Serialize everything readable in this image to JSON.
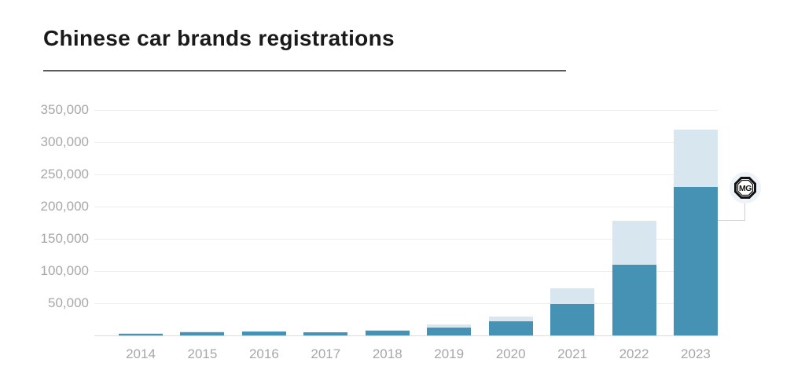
{
  "title": "Chinese car brands registrations",
  "colors": {
    "mg_series": "#4592b5",
    "other_series": "#d8e7ef",
    "grid": "#ededed",
    "axis_baseline": "#dcdcdc",
    "tick_text": "#a7a7a7",
    "title_text": "#1a1a1a",
    "title_rule": "#5a5a5a",
    "connector_line": "#cfcfcf",
    "badge_background": "#edf3f8",
    "badge_ink": "#111111"
  },
  "chart_data": {
    "type": "bar",
    "stacked": true,
    "title": "Chinese car brands registrations",
    "categories": [
      "2014",
      "2015",
      "2016",
      "2017",
      "2018",
      "2019",
      "2020",
      "2021",
      "2022",
      "2023"
    ],
    "series": [
      {
        "name": "MG",
        "color_key": "mg_series",
        "values": [
          3000,
          5000,
          5500,
          4500,
          7000,
          12000,
          22000,
          49000,
          110000,
          230000
        ]
      },
      {
        "name": "",
        "color_key": "other_series",
        "values": [
          500,
          500,
          500,
          500,
          1500,
          5000,
          7500,
          24000,
          68000,
          90000
        ]
      }
    ],
    "totals": [
      3500,
      5500,
      6000,
      5000,
      8500,
      17000,
      29500,
      73000,
      178000,
      320000
    ],
    "ylim": [
      0,
      350000
    ],
    "ytick_values": [
      50000,
      100000,
      150000,
      200000,
      250000,
      300000,
      350000
    ],
    "ytick_labels": [
      "50,000",
      "100,000",
      "150,000",
      "200,000",
      "250,000",
      "300,000",
      "350,000"
    ],
    "grid": true,
    "legend_position": "none",
    "annotation": {
      "badge_text": "MG",
      "target_category": "2023",
      "target_series": "MG"
    }
  }
}
